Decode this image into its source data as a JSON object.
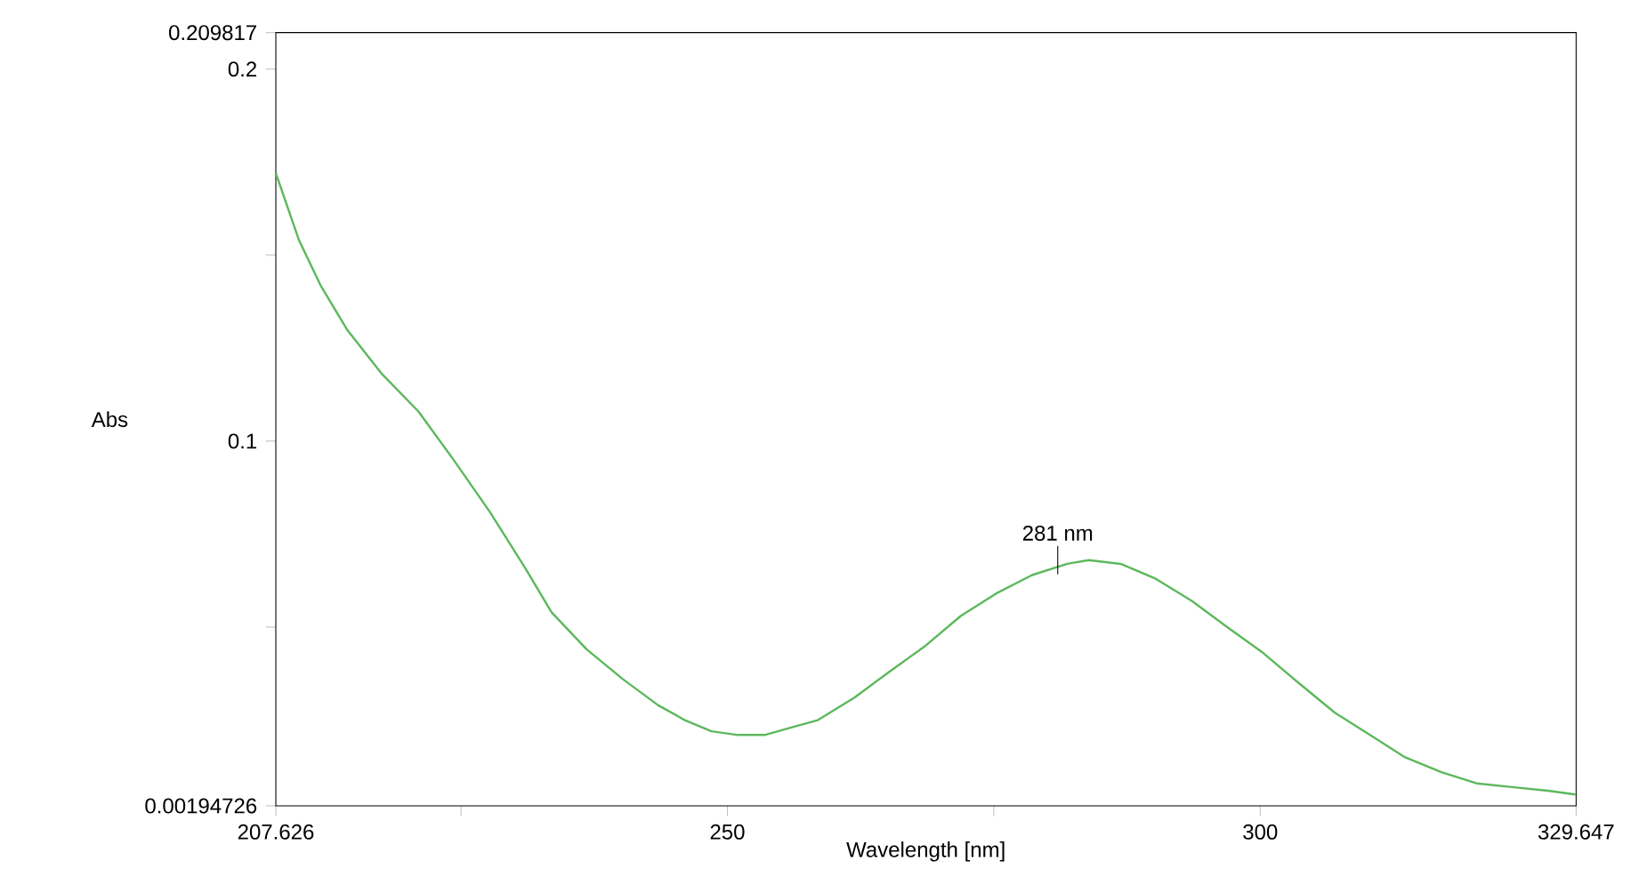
{
  "chart_data": {
    "type": "line",
    "xlabel": "Wavelength [nm]",
    "ylabel": "Abs",
    "xlim": [
      207.626,
      329.647
    ],
    "xticks": [
      {
        "value": 207.626,
        "label": "207.626"
      },
      {
        "value": 225,
        "label": null
      },
      250,
      {
        "value": 275,
        "label": null
      },
      300,
      {
        "value": 329.647,
        "label": "329.647"
      }
    ],
    "ylim": [
      0.00194726,
      0.209817
    ],
    "yticks": [
      {
        "value": 0.00194726,
        "label": "0.00194726"
      },
      {
        "value": 0.05,
        "label": null
      },
      0.1,
      {
        "value": 0.15,
        "label": null
      },
      0.2,
      {
        "value": 0.209817,
        "label": "0.209817"
      }
    ],
    "grid": false,
    "marker": "none",
    "line_style": "solid",
    "annotations": [
      {
        "text": "281 nm",
        "x": 281,
        "y": 0.068
      }
    ],
    "series": [
      {
        "color": "#5cb85c",
        "x": [
          207.63,
          209.8,
          211.8,
          214.3,
          217.6,
          221.0,
          224.3,
          227.7,
          231.0,
          233.5,
          236.8,
          240.2,
          243.5,
          246.0,
          248.5,
          251.0,
          253.5,
          256.0,
          258.5,
          261.9,
          265.2,
          268.6,
          271.9,
          275.2,
          278.6,
          281.9,
          283.9,
          286.9,
          290.2,
          293.6,
          296.9,
          300.3,
          303.6,
          307.0,
          310.3,
          313.6,
          317.0,
          320.3,
          323.6,
          327.0,
          329.6
        ],
        "values": [
          0.172,
          0.154,
          0.142,
          0.13,
          0.118,
          0.108,
          0.095,
          0.081,
          0.066,
          0.054,
          0.044,
          0.036,
          0.029,
          0.025,
          0.022,
          0.021,
          0.021,
          0.023,
          0.025,
          0.031,
          0.038,
          0.045,
          0.053,
          0.059,
          0.064,
          0.067,
          0.068,
          0.067,
          0.063,
          0.057,
          0.05,
          0.043,
          0.035,
          0.027,
          0.021,
          0.015,
          0.011,
          0.008,
          0.007,
          0.006,
          0.005
        ]
      }
    ]
  }
}
